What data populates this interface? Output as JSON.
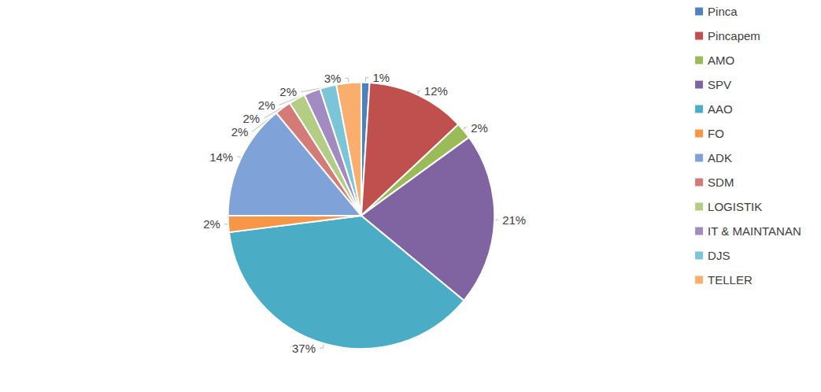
{
  "chart_data": {
    "type": "pie",
    "categories": [
      "Pinca",
      "Pincapem",
      "AMO",
      "SPV",
      "AAO",
      "FO",
      "ADK",
      "SDM",
      "LOGISTIK",
      "IT & MAINTANAN",
      "DJS",
      "TELLER"
    ],
    "values": [
      1,
      12,
      2,
      21,
      37,
      2,
      14,
      2,
      2,
      2,
      2,
      3
    ],
    "value_labels": [
      "1%",
      "12%",
      "2%",
      "21%",
      "37%",
      "2%",
      "14%",
      "2%",
      "2%",
      "2%",
      "2%",
      "3%"
    ],
    "colors": [
      "#4f81bd",
      "#c0504d",
      "#9bbb59",
      "#8064a2",
      "#4bacc6",
      "#f79646",
      "#7fa2d8",
      "#d47b78",
      "#b3cd85",
      "#a28bc1",
      "#7cc4d8",
      "#f9ae6e"
    ],
    "data_labels": true,
    "legend": "right"
  }
}
